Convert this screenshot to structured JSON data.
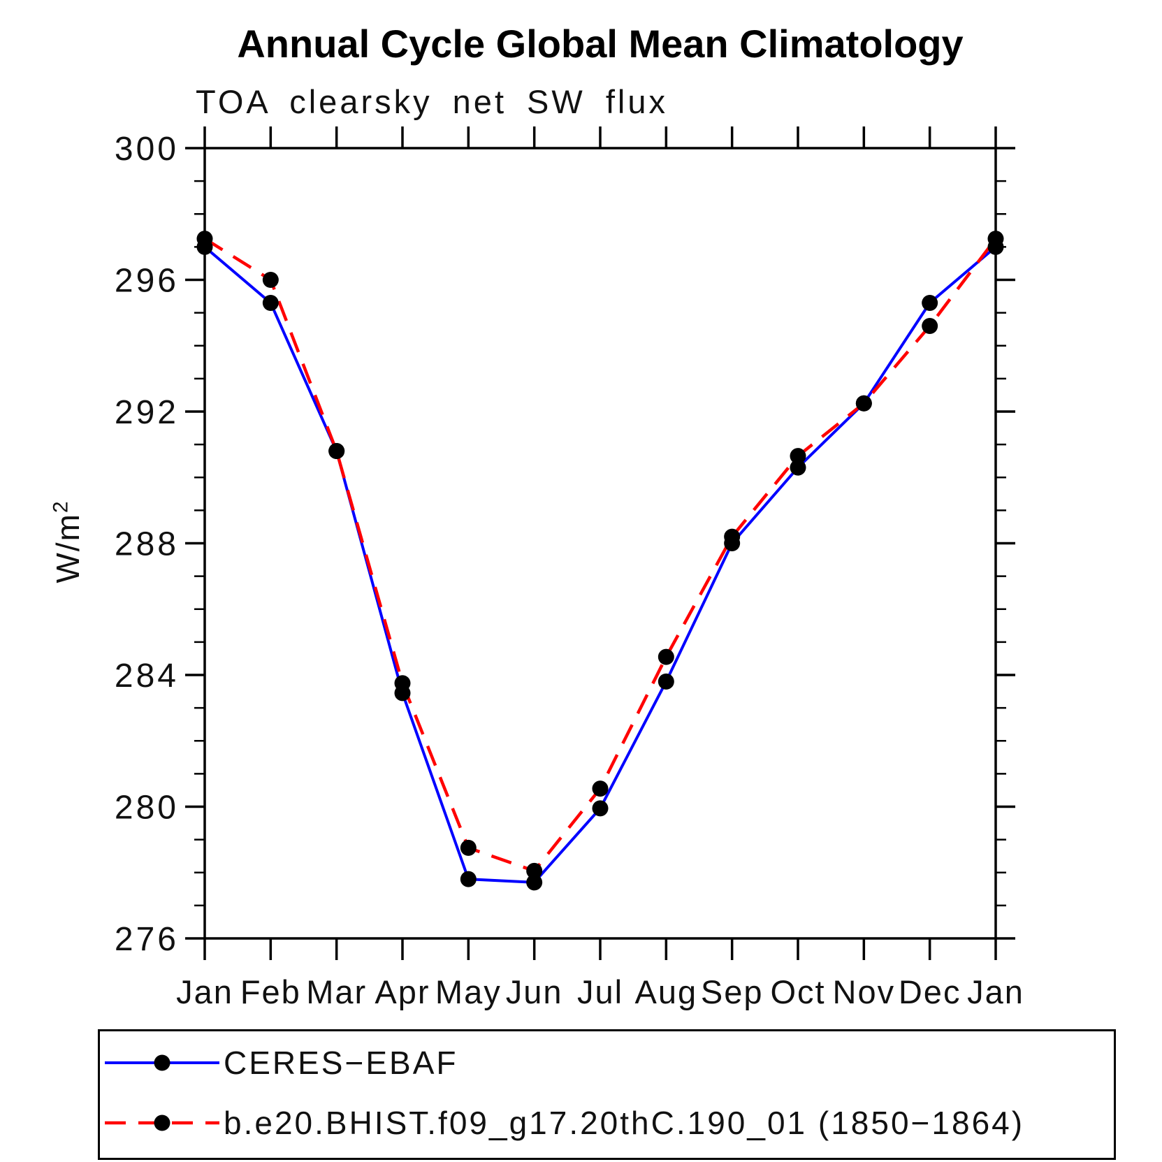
{
  "chart_data": {
    "type": "line",
    "title": "Annual Cycle Global Mean Climatology",
    "subtitle": "TOA clearsky net SW flux",
    "ylabel_base": "W/m",
    "ylabel_exp": "2",
    "categories": [
      "Jan",
      "Feb",
      "Mar",
      "Apr",
      "May",
      "Jun",
      "Jul",
      "Aug",
      "Sep",
      "Oct",
      "Nov",
      "Dec",
      "Jan"
    ],
    "ylim": [
      276,
      300
    ],
    "ytick_labels": [
      "300",
      "296",
      "292",
      "288",
      "284",
      "280",
      "276"
    ],
    "ytick_major_step": 4,
    "ytick_minor_step": 1,
    "grid": "off",
    "legend_position": "bottom",
    "marker_color": "#000000",
    "series": [
      {
        "name": "CERES−EBAF",
        "color": "#0000ff",
        "style": "solid",
        "values": [
          297.0,
          295.3,
          290.8,
          283.45,
          277.8,
          277.7,
          279.95,
          283.8,
          288.0,
          290.3,
          292.25,
          295.3,
          297.0
        ]
      },
      {
        "name": "b.e20.BHIST.f09_g17.20thC.190_01 (1850−1864)",
        "color": "#ff0000",
        "style": "dashed",
        "values": [
          297.25,
          296.0,
          290.8,
          283.75,
          278.75,
          278.05,
          280.55,
          284.55,
          288.2,
          290.65,
          292.25,
          294.6,
          297.25
        ]
      }
    ]
  }
}
